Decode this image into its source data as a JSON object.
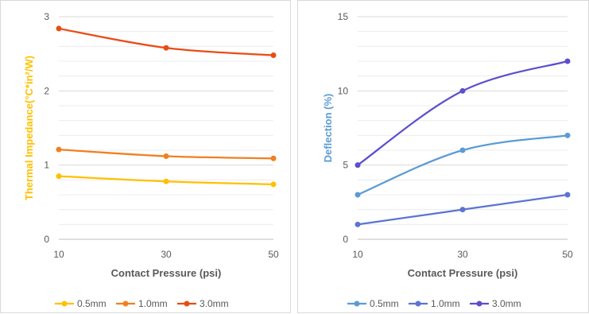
{
  "chart_data": [
    {
      "type": "line",
      "smooth": true,
      "x": [
        10,
        30,
        50
      ],
      "x_ticks": [
        "10",
        "30",
        "50"
      ],
      "xlabel": "Contact Pressure (psi)",
      "ylabel": "Thermal Impedance(°C*in²/W)",
      "ylabel_color": "#ffc000",
      "ylim": [
        0,
        3
      ],
      "y_ticks": [
        "0",
        "1",
        "2",
        "3"
      ],
      "minor_grid_step": 0.2,
      "grid": true,
      "legend_position": "bottom",
      "series": [
        {
          "name": "0.5mm",
          "color": "#ffc000",
          "values": [
            0.85,
            0.78,
            0.74
          ]
        },
        {
          "name": "1.0mm",
          "color": "#f08020",
          "values": [
            1.21,
            1.12,
            1.09
          ]
        },
        {
          "name": "3.0mm",
          "color": "#ea4b14",
          "values": [
            2.84,
            2.58,
            2.48
          ]
        }
      ]
    },
    {
      "type": "line",
      "smooth": true,
      "x": [
        10,
        30,
        50
      ],
      "x_ticks": [
        "10",
        "30",
        "50"
      ],
      "xlabel": "Contact Pressure (psi)",
      "ylabel": "Deflection (%)",
      "ylabel_color": "#5b9bd5",
      "ylim": [
        0,
        15
      ],
      "y_ticks": [
        "0",
        "5",
        "10",
        "15"
      ],
      "minor_grid_step": 1,
      "grid": true,
      "legend_position": "bottom",
      "series": [
        {
          "name": "0.5mm",
          "color": "#5b9bd5",
          "values": [
            3,
            6,
            7
          ]
        },
        {
          "name": "1.0mm",
          "color": "#5b74d3",
          "values": [
            1,
            2,
            3
          ]
        },
        {
          "name": "3.0mm",
          "color": "#5a4fcf",
          "values": [
            5,
            10,
            12
          ]
        }
      ]
    }
  ]
}
